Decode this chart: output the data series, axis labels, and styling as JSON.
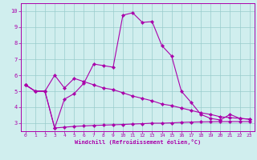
{
  "xlabel": "Windchill (Refroidissement éolien,°C)",
  "background_color": "#d0eeee",
  "line_color": "#aa00aa",
  "xlim": [
    -0.5,
    23.5
  ],
  "ylim": [
    2.5,
    10.5
  ],
  "xticks": [
    0,
    1,
    2,
    3,
    4,
    5,
    6,
    7,
    8,
    9,
    10,
    11,
    12,
    13,
    14,
    15,
    16,
    17,
    18,
    19,
    20,
    21,
    22,
    23
  ],
  "yticks": [
    3,
    4,
    5,
    6,
    7,
    8,
    9,
    10
  ],
  "grid_color": "#99cccc",
  "curve1_x": [
    0,
    1,
    2,
    3,
    4,
    5,
    6,
    7,
    8,
    9,
    10,
    11,
    12,
    13,
    14,
    15,
    16,
    17,
    18,
    19,
    20,
    21,
    22,
    23
  ],
  "curve1_y": [
    5.4,
    5.0,
    5.0,
    2.7,
    4.5,
    4.85,
    5.5,
    6.7,
    6.6,
    6.5,
    9.75,
    9.9,
    9.3,
    9.35,
    7.85,
    7.2,
    5.0,
    4.3,
    3.55,
    3.3,
    3.2,
    3.55,
    3.3,
    3.25
  ],
  "curve2_x": [
    0,
    1,
    2,
    3,
    4,
    5,
    6,
    7,
    8,
    9,
    10,
    11,
    12,
    13,
    14,
    15,
    16,
    17,
    18,
    19,
    20,
    21,
    22,
    23
  ],
  "curve2_y": [
    5.4,
    5.0,
    5.0,
    6.0,
    5.2,
    5.8,
    5.6,
    5.4,
    5.2,
    5.1,
    4.9,
    4.7,
    4.55,
    4.4,
    4.2,
    4.1,
    3.95,
    3.8,
    3.65,
    3.55,
    3.4,
    3.35,
    3.3,
    3.25
  ],
  "curve3_x": [
    0,
    1,
    2,
    3,
    4,
    5,
    6,
    7,
    8,
    9,
    10,
    11,
    12,
    13,
    14,
    15,
    16,
    17,
    18,
    19,
    20,
    21,
    22,
    23
  ],
  "curve3_y": [
    5.4,
    5.0,
    5.0,
    2.7,
    2.75,
    2.8,
    2.83,
    2.86,
    2.88,
    2.9,
    2.92,
    2.95,
    2.97,
    3.0,
    3.0,
    3.02,
    3.05,
    3.07,
    3.08,
    3.09,
    3.1,
    3.1,
    3.1,
    3.1
  ]
}
